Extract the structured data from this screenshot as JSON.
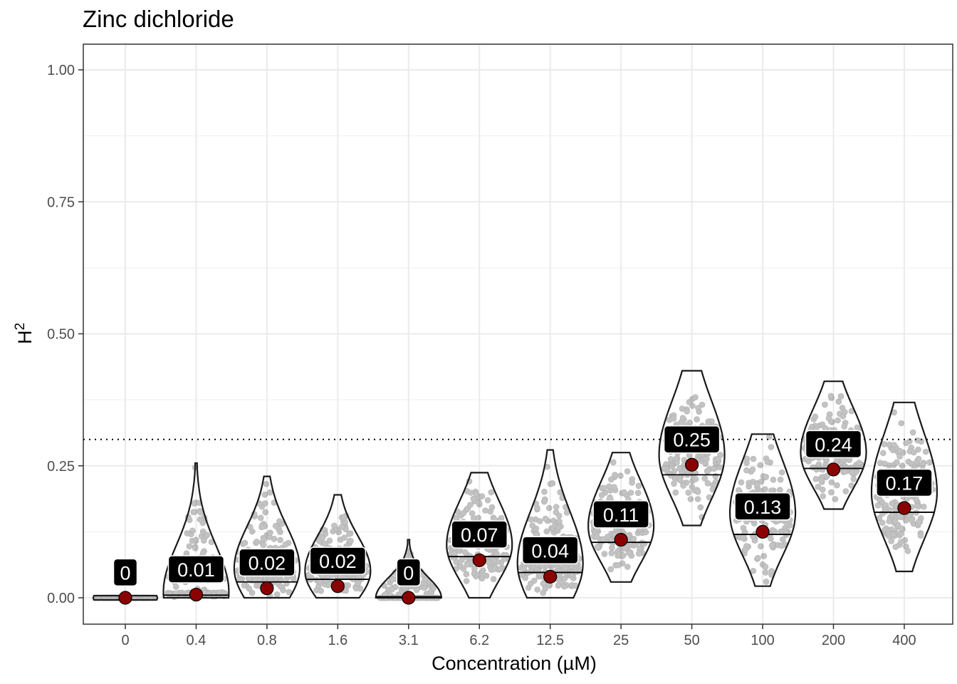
{
  "chart_data": {
    "type": "violin",
    "title": "Zinc dichloride",
    "xlabel": "Concentration (µM)",
    "ylabel": "H",
    "ylabel_superscript": "2",
    "categories": [
      "0",
      "0.4",
      "0.8",
      "1.6",
      "3.1",
      "6.2",
      "12.5",
      "25",
      "50",
      "100",
      "200",
      "400"
    ],
    "means": [
      0.0,
      0.006,
      0.018,
      0.022,
      0.0,
      0.071,
      0.04,
      0.11,
      0.252,
      0.125,
      0.243,
      0.17
    ],
    "medians": [
      0.0,
      0.005,
      0.03,
      0.035,
      0.002,
      0.078,
      0.048,
      0.105,
      0.233,
      0.12,
      0.245,
      0.162
    ],
    "labels": [
      "0",
      "0.01",
      "0.02",
      "0.02",
      "0",
      "0.07",
      "0.04",
      "0.11",
      "0.25",
      "0.13",
      "0.24",
      "0.17"
    ],
    "label_y": [
      0.048,
      0.054,
      0.067,
      0.07,
      0.048,
      0.12,
      0.09,
      0.158,
      0.3,
      0.173,
      0.291,
      0.218
    ],
    "min": [
      0.0,
      0.0,
      0.0,
      0.0,
      0.0,
      0.0,
      0.0,
      0.03,
      0.137,
      0.022,
      0.168,
      0.05
    ],
    "max": [
      0.004,
      0.255,
      0.23,
      0.195,
      0.11,
      0.237,
      0.28,
      0.275,
      0.43,
      0.31,
      0.41,
      0.37
    ],
    "mode": [
      0.0,
      0.01,
      0.055,
      0.05,
      0.0,
      0.1,
      0.065,
      0.135,
      0.27,
      0.16,
      0.275,
      0.2
    ],
    "threshold": 0.3,
    "yticks": [
      "0.00",
      "0.25",
      "0.50",
      "0.75",
      "1.00"
    ],
    "ylim": [
      -0.05,
      1.05
    ],
    "grid": true,
    "colors": {
      "mean_point": "#8b0000",
      "violin_outline": "#1a1a1a",
      "jitter": "#555555",
      "label_bg": "#000000",
      "label_text": "#ffffff",
      "grid": "#ebebeb"
    }
  }
}
